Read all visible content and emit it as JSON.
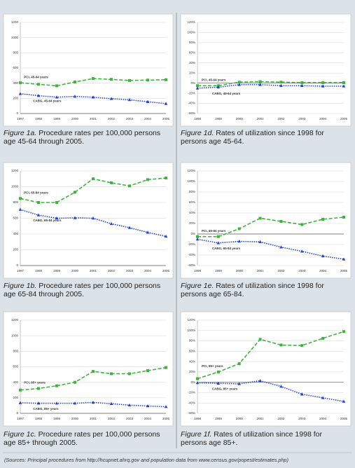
{
  "chart_data": [
    {
      "type": "line",
      "caption": {
        "label": "Figure 1a.",
        "text": "Procedure rates per 100,000 persons age 45-64 through 2005."
      },
      "categories": [
        "1997",
        "1998",
        "1999",
        "2000",
        "2001",
        "2002",
        "2003",
        "2004",
        "2005"
      ],
      "series": [
        {
          "name": "PCI, 45-64 years",
          "color": "#3db53d",
          "marker": "square",
          "dash": "dashed",
          "values": [
            405,
            385,
            365,
            415,
            460,
            450,
            435,
            440,
            445
          ]
        },
        {
          "name": "CABG, 45-64 years",
          "color": "#2040d8",
          "marker": "triangle",
          "dash": "dotted",
          "values": [
            260,
            235,
            215,
            225,
            215,
            195,
            180,
            155,
            130
          ]
        }
      ],
      "ylim": [
        0,
        1200
      ],
      "yticks": [
        0,
        200,
        400,
        600,
        800,
        1000,
        1200
      ],
      "grid": true
    },
    {
      "type": "line",
      "caption": {
        "label": "Figure 1b.",
        "text": "Procedure rates per 100,000 persons age 65-84 through 2005."
      },
      "categories": [
        "1997",
        "1998",
        "1999",
        "2000",
        "2001",
        "2002",
        "2003",
        "2004",
        "2005"
      ],
      "series": [
        {
          "name": "PCI, 65-84 years",
          "color": "#3db53d",
          "marker": "square",
          "dash": "dashed",
          "values": [
            850,
            800,
            800,
            930,
            1100,
            1050,
            1010,
            1090,
            1110
          ]
        },
        {
          "name": "CABG, 65-84 years",
          "color": "#2040d8",
          "marker": "triangle",
          "dash": "dotted",
          "values": [
            710,
            640,
            600,
            605,
            600,
            530,
            480,
            420,
            370
          ]
        }
      ],
      "ylim": [
        0,
        1200
      ],
      "yticks": [
        0,
        200,
        400,
        600,
        800,
        1000,
        1200
      ],
      "grid": true
    },
    {
      "type": "line",
      "caption": {
        "label": "Figure 1c.",
        "text": "Procedure rates per 100,000 persons age 85+ through 2005."
      },
      "categories": [
        "1997",
        "1998",
        "1999",
        "2000",
        "2001",
        "2002",
        "2003",
        "2004",
        "2005"
      ],
      "series": [
        {
          "name": "PCI, 85+ years",
          "color": "#3db53d",
          "marker": "square",
          "dash": "dashed",
          "values": [
            300,
            320,
            355,
            400,
            540,
            510,
            510,
            550,
            590
          ]
        },
        {
          "name": "CABG, 85+ years",
          "color": "#2040d8",
          "marker": "triangle",
          "dash": "dotted",
          "values": [
            135,
            130,
            130,
            130,
            140,
            125,
            105,
            95,
            85
          ]
        }
      ],
      "ylim": [
        0,
        1200
      ],
      "yticks": [
        0,
        200,
        400,
        600,
        800,
        1000,
        1200
      ],
      "grid": true
    },
    {
      "type": "line",
      "caption": {
        "label": "Figure 1d.",
        "text": "Rates of utilization since 1998 for persons age 45-64."
      },
      "categories": [
        "1998",
        "1999",
        "2000",
        "2001",
        "2002",
        "2003",
        "2004",
        "2005"
      ],
      "series": [
        {
          "name": "PCI, 45-64 years",
          "color": "#3db53d",
          "marker": "square",
          "dash": "dashed",
          "values": [
            -5,
            -5,
            2,
            3,
            2,
            1,
            1,
            1
          ]
        },
        {
          "name": "CABG, 45-64 years",
          "color": "#2040d8",
          "marker": "triangle",
          "dash": "dotted",
          "values": [
            -10,
            -8,
            -3,
            -3,
            -5,
            -5,
            -6,
            -6
          ]
        }
      ],
      "ylim": [
        -60,
        120
      ],
      "yticks": [
        {
          "value": -60,
          "label": "-60%"
        },
        {
          "value": -40,
          "label": "-40%"
        },
        {
          "value": -20,
          "label": "-20%"
        },
        {
          "value": 0,
          "label": "0%"
        },
        {
          "value": 20,
          "label": "20%"
        },
        {
          "value": 40,
          "label": "40%"
        },
        {
          "value": 60,
          "label": "60%"
        },
        {
          "value": 80,
          "label": "80%"
        },
        {
          "value": 100,
          "label": "100%"
        },
        {
          "value": 120,
          "label": "120%"
        }
      ],
      "grid": true
    },
    {
      "type": "line",
      "caption": {
        "label": "Figure 1e.",
        "text": "Rates of utilization since 1998 for persons age 65-84."
      },
      "categories": [
        "1998",
        "1999",
        "2000",
        "2001",
        "2002",
        "2003",
        "2004",
        "2005"
      ],
      "series": [
        {
          "name": "PCI, 65-84 years",
          "color": "#3db53d",
          "marker": "square",
          "dash": "dashed",
          "values": [
            -5,
            -5,
            10,
            30,
            24,
            18,
            28,
            32
          ]
        },
        {
          "name": "CABG, 65-84 years",
          "color": "#2040d8",
          "marker": "triangle",
          "dash": "dotted",
          "values": [
            -10,
            -17,
            -14,
            -15,
            -25,
            -33,
            -42,
            -48
          ]
        }
      ],
      "ylim": [
        -60,
        120
      ],
      "yticks": [
        {
          "value": -60,
          "label": "-60%"
        },
        {
          "value": -40,
          "label": "-40%"
        },
        {
          "value": -20,
          "label": "-20%"
        },
        {
          "value": 0,
          "label": "0%"
        },
        {
          "value": 20,
          "label": "20%"
        },
        {
          "value": 40,
          "label": "40%"
        },
        {
          "value": 60,
          "label": "60%"
        },
        {
          "value": 80,
          "label": "80%"
        },
        {
          "value": 100,
          "label": "100%"
        },
        {
          "value": 120,
          "label": "120%"
        }
      ],
      "grid": true
    },
    {
      "type": "line",
      "caption": {
        "label": "Figure 1f.",
        "text": "Rates of utilization since 1998 for persons age 85+."
      },
      "categories": [
        "1998",
        "1999",
        "2000",
        "2001",
        "2002",
        "2003",
        "2004",
        "2005"
      ],
      "series": [
        {
          "name": "PCI, 85+ years",
          "color": "#3db53d",
          "marker": "square",
          "dash": "dashed",
          "values": [
            7,
            20,
            36,
            83,
            72,
            71,
            85,
            98
          ]
        },
        {
          "name": "CABG, 85+ years",
          "color": "#2040d8",
          "marker": "triangle",
          "dash": "dotted",
          "values": [
            -1,
            -2,
            -3,
            3,
            -8,
            -23,
            -30,
            -37
          ]
        }
      ],
      "ylim": [
        -60,
        120
      ],
      "yticks": [
        {
          "value": -60,
          "label": "-60%"
        },
        {
          "value": -40,
          "label": "-40%"
        },
        {
          "value": -20,
          "label": "-20%"
        },
        {
          "value": 0,
          "label": "0%"
        },
        {
          "value": 20,
          "label": "20%"
        },
        {
          "value": 40,
          "label": "40%"
        },
        {
          "value": 60,
          "label": "60%"
        },
        {
          "value": 80,
          "label": "80%"
        },
        {
          "value": 100,
          "label": "100%"
        },
        {
          "value": 120,
          "label": "120%"
        }
      ],
      "grid": true
    }
  ],
  "source": "(Sources: Principal procedures from http://hcupnet.ahrq.gov and population data from www.census.gov/popest/estimates.php)"
}
